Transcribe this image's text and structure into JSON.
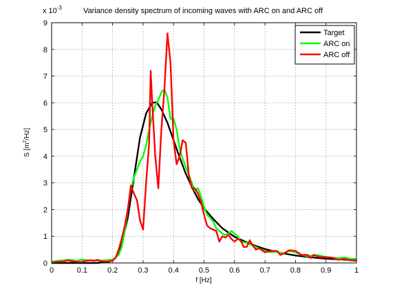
{
  "chart_data": {
    "type": "line",
    "title": "Variance density spectrum of incoming waves with ARC on and ARC off",
    "xlabel": "f [Hz]",
    "ylabel_parts": [
      "S [m",
      "2",
      "/Hz]"
    ],
    "y_multiplier": [
      "x 10",
      "-3"
    ],
    "xlim": [
      0,
      1
    ],
    "ylim": [
      0,
      9
    ],
    "grid": true,
    "legend_position": "top-right",
    "x_ticks": [
      "0",
      "0.1",
      "0.2",
      "0.3",
      "0.4",
      "0.5",
      "0.6",
      "0.7",
      "0.8",
      "0.9",
      "1"
    ],
    "y_ticks": [
      "0",
      "1",
      "2",
      "3",
      "4",
      "5",
      "6",
      "7",
      "8",
      "9"
    ],
    "series": [
      {
        "name": "Target",
        "color": "#000000",
        "points": [
          [
            0,
            0
          ],
          [
            0.15,
            0
          ],
          [
            0.19,
            0.05
          ],
          [
            0.21,
            0.2
          ],
          [
            0.23,
            0.7
          ],
          [
            0.25,
            1.7
          ],
          [
            0.27,
            3.2
          ],
          [
            0.29,
            4.7
          ],
          [
            0.31,
            5.6
          ],
          [
            0.33,
            6.0
          ],
          [
            0.345,
            6.02
          ],
          [
            0.36,
            5.75
          ],
          [
            0.38,
            5.25
          ],
          [
            0.4,
            4.6
          ],
          [
            0.42,
            3.95
          ],
          [
            0.44,
            3.35
          ],
          [
            0.46,
            2.85
          ],
          [
            0.48,
            2.4
          ],
          [
            0.5,
            2.05
          ],
          [
            0.53,
            1.65
          ],
          [
            0.56,
            1.3
          ],
          [
            0.6,
            0.98
          ],
          [
            0.65,
            0.72
          ],
          [
            0.7,
            0.52
          ],
          [
            0.75,
            0.38
          ],
          [
            0.8,
            0.28
          ],
          [
            0.85,
            0.21
          ],
          [
            0.9,
            0.16
          ],
          [
            0.95,
            0.13
          ],
          [
            1.0,
            0.1
          ]
        ]
      },
      {
        "name": "ARC on",
        "color": "#00ff00",
        "points": [
          [
            0,
            0.05
          ],
          [
            0.02,
            0.08
          ],
          [
            0.04,
            0.1
          ],
          [
            0.06,
            0.12
          ],
          [
            0.08,
            0.08
          ],
          [
            0.1,
            0.12
          ],
          [
            0.12,
            0.1
          ],
          [
            0.14,
            0.1
          ],
          [
            0.16,
            0.08
          ],
          [
            0.18,
            0.1
          ],
          [
            0.2,
            0.12
          ],
          [
            0.22,
            0.3
          ],
          [
            0.23,
            0.6
          ],
          [
            0.24,
            1.2
          ],
          [
            0.25,
            2.0
          ],
          [
            0.26,
            2.8
          ],
          [
            0.27,
            3.2
          ],
          [
            0.28,
            3.5
          ],
          [
            0.29,
            3.8
          ],
          [
            0.3,
            4.0
          ],
          [
            0.31,
            4.4
          ],
          [
            0.32,
            5.0
          ],
          [
            0.33,
            5.5
          ],
          [
            0.34,
            5.9
          ],
          [
            0.35,
            6.1
          ],
          [
            0.36,
            6.4
          ],
          [
            0.37,
            6.5
          ],
          [
            0.38,
            6.2
          ],
          [
            0.39,
            5.4
          ],
          [
            0.4,
            5.4
          ],
          [
            0.41,
            5.0
          ],
          [
            0.42,
            4.3
          ],
          [
            0.43,
            3.9
          ],
          [
            0.44,
            3.6
          ],
          [
            0.45,
            3.3
          ],
          [
            0.46,
            3.0
          ],
          [
            0.47,
            2.7
          ],
          [
            0.48,
            2.8
          ],
          [
            0.49,
            2.5
          ],
          [
            0.5,
            2.1
          ],
          [
            0.51,
            1.8
          ],
          [
            0.52,
            1.7
          ],
          [
            0.53,
            1.55
          ],
          [
            0.54,
            1.3
          ],
          [
            0.55,
            1.2
          ],
          [
            0.56,
            1.1
          ],
          [
            0.57,
            1.05
          ],
          [
            0.58,
            1.1
          ],
          [
            0.59,
            1.2
          ],
          [
            0.6,
            1.1
          ],
          [
            0.61,
            1.0
          ],
          [
            0.62,
            0.8
          ],
          [
            0.64,
            0.75
          ],
          [
            0.66,
            0.65
          ],
          [
            0.68,
            0.55
          ],
          [
            0.7,
            0.45
          ],
          [
            0.72,
            0.4
          ],
          [
            0.74,
            0.42
          ],
          [
            0.76,
            0.35
          ],
          [
            0.78,
            0.45
          ],
          [
            0.8,
            0.4
          ],
          [
            0.82,
            0.3
          ],
          [
            0.84,
            0.25
          ],
          [
            0.86,
            0.3
          ],
          [
            0.88,
            0.28
          ],
          [
            0.9,
            0.22
          ],
          [
            0.92,
            0.2
          ],
          [
            0.94,
            0.18
          ],
          [
            0.96,
            0.2
          ],
          [
            0.98,
            0.16
          ],
          [
            1.0,
            0.15
          ]
        ]
      },
      {
        "name": "ARC off",
        "color": "#ff0000",
        "points": [
          [
            0,
            0
          ],
          [
            0.02,
            0.05
          ],
          [
            0.04,
            0.05
          ],
          [
            0.05,
            0.1
          ],
          [
            0.06,
            0.08
          ],
          [
            0.08,
            0.05
          ],
          [
            0.1,
            0.03
          ],
          [
            0.11,
            0.08
          ],
          [
            0.13,
            0.1
          ],
          [
            0.14,
            0.08
          ],
          [
            0.15,
            0.12
          ],
          [
            0.16,
            0.08
          ],
          [
            0.18,
            0.05
          ],
          [
            0.2,
            0.08
          ],
          [
            0.21,
            0.2
          ],
          [
            0.22,
            0.5
          ],
          [
            0.23,
            0.9
          ],
          [
            0.24,
            1.4
          ],
          [
            0.25,
            2.0
          ],
          [
            0.26,
            2.9
          ],
          [
            0.27,
            2.6
          ],
          [
            0.28,
            2.35
          ],
          [
            0.29,
            1.6
          ],
          [
            0.3,
            1.25
          ],
          [
            0.31,
            3.0
          ],
          [
            0.32,
            4.5
          ],
          [
            0.325,
            7.2
          ],
          [
            0.33,
            6.0
          ],
          [
            0.34,
            4.0
          ],
          [
            0.35,
            2.8
          ],
          [
            0.36,
            5.0
          ],
          [
            0.37,
            6.5
          ],
          [
            0.38,
            8.6
          ],
          [
            0.39,
            7.5
          ],
          [
            0.4,
            4.6
          ],
          [
            0.41,
            3.7
          ],
          [
            0.42,
            4.0
          ],
          [
            0.43,
            4.6
          ],
          [
            0.44,
            4.5
          ],
          [
            0.45,
            3.3
          ],
          [
            0.46,
            2.8
          ],
          [
            0.47,
            2.8
          ],
          [
            0.48,
            2.6
          ],
          [
            0.49,
            2.3
          ],
          [
            0.5,
            1.8
          ],
          [
            0.51,
            1.4
          ],
          [
            0.52,
            1.3
          ],
          [
            0.53,
            1.25
          ],
          [
            0.54,
            1.2
          ],
          [
            0.55,
            0.8
          ],
          [
            0.56,
            1.0
          ],
          [
            0.57,
            0.95
          ],
          [
            0.58,
            1.05
          ],
          [
            0.59,
            0.9
          ],
          [
            0.6,
            0.8
          ],
          [
            0.61,
            0.9
          ],
          [
            0.62,
            0.85
          ],
          [
            0.63,
            0.6
          ],
          [
            0.64,
            0.6
          ],
          [
            0.65,
            0.85
          ],
          [
            0.66,
            0.65
          ],
          [
            0.67,
            0.5
          ],
          [
            0.68,
            0.55
          ],
          [
            0.7,
            0.4
          ],
          [
            0.72,
            0.45
          ],
          [
            0.74,
            0.45
          ],
          [
            0.75,
            0.3
          ],
          [
            0.76,
            0.35
          ],
          [
            0.78,
            0.48
          ],
          [
            0.8,
            0.45
          ],
          [
            0.82,
            0.3
          ],
          [
            0.84,
            0.3
          ],
          [
            0.85,
            0.18
          ],
          [
            0.86,
            0.3
          ],
          [
            0.88,
            0.22
          ],
          [
            0.9,
            0.22
          ],
          [
            0.92,
            0.2
          ],
          [
            0.94,
            0.12
          ],
          [
            0.96,
            0.15
          ],
          [
            0.98,
            0.1
          ],
          [
            1.0,
            0.08
          ]
        ]
      }
    ]
  }
}
